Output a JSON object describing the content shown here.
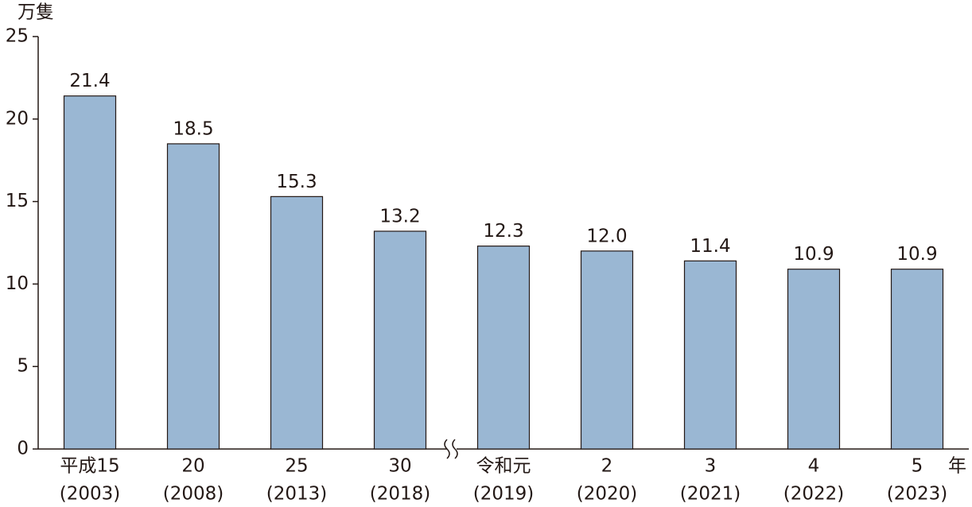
{
  "chart_data": {
    "type": "bar",
    "y_axis_label": "万隻",
    "x_axis_label": "年",
    "categories": [
      "平成15",
      "20",
      "25",
      "30",
      "令和元",
      "2",
      "3",
      "4",
      "5"
    ],
    "category_years": [
      "(2003)",
      "(2008)",
      "(2013)",
      "(2018)",
      "(2019)",
      "(2020)",
      "(2021)",
      "(2022)",
      "(2023)"
    ],
    "values": [
      21.4,
      18.5,
      15.3,
      13.2,
      12.3,
      12.0,
      11.4,
      10.9,
      10.9
    ],
    "value_labels": [
      "21.4",
      "18.5",
      "15.3",
      "13.2",
      "12.3",
      "12.0",
      "11.4",
      "10.9",
      "10.9"
    ],
    "color": "#9ab7d3",
    "ylim": [
      0,
      25
    ],
    "yticks": [
      0,
      5,
      10,
      15,
      20,
      25
    ],
    "grid": false
  }
}
